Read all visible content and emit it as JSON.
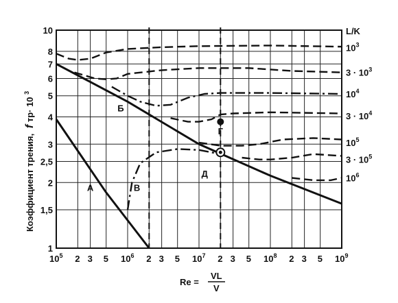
{
  "chart_data": {
    "type": "line",
    "xscale": "log",
    "yscale": "log",
    "xlim": [
      100000,
      1000000000
    ],
    "ylim": [
      1,
      10
    ],
    "x_decade_ticks": [
      {
        "base": "10",
        "exp": "5",
        "value": 100000
      },
      {
        "base": "10",
        "exp": "6",
        "value": 1000000
      },
      {
        "base": "10",
        "exp": "7",
        "value": 10000000
      },
      {
        "base": "10",
        "exp": "8",
        "value": 100000000
      },
      {
        "base": "10",
        "exp": "9",
        "value": 1000000000
      }
    ],
    "x_minor_ticks": [
      "2",
      "3",
      "5"
    ],
    "y_ticks": [
      {
        "label": "1",
        "value": 1
      },
      {
        "label": "1,5",
        "value": 1.5
      },
      {
        "label": "2",
        "value": 2
      },
      {
        "label": "2,5",
        "value": 2.5
      },
      {
        "label": "3",
        "value": 3
      },
      {
        "label": "4",
        "value": 4
      },
      {
        "label": "5",
        "value": 5
      },
      {
        "label": "6",
        "value": 6
      },
      {
        "label": "7",
        "value": 7
      },
      {
        "label": "8",
        "value": 8
      },
      {
        "label": "10",
        "value": 10
      }
    ],
    "ylabel": {
      "prefix": "Коэффициент трения,",
      "symbol": "f",
      "suffix": " тр· 10",
      "exp": "3"
    },
    "xlabel": {
      "lhs": "Re =",
      "num": "VL",
      "den": "V"
    },
    "right_axis_title": "L/K",
    "right_labels": [
      {
        "mant": "",
        "exp": "3",
        "y": 8.3
      },
      {
        "mant": "3 ·",
        "exp": "3",
        "y": 6.4
      },
      {
        "mant": "",
        "exp": "4",
        "y": 5.1
      },
      {
        "mant": "3 ·",
        "exp": "4",
        "y": 4.05
      },
      {
        "mant": "",
        "exp": "5",
        "y": 3.05
      },
      {
        "mant": "3 ·",
        "exp": "5",
        "y": 2.55
      },
      {
        "mant": "",
        "exp": "6",
        "y": 2.1
      }
    ],
    "series": [
      {
        "name": "А",
        "style": "solid",
        "x": [
          100000,
          500000,
          2000000
        ],
        "y": [
          3.9,
          1.8,
          1.0
        ]
      },
      {
        "name": "Б",
        "style": "solid",
        "x": [
          100000,
          1000000,
          10000000,
          100000000,
          1000000000
        ],
        "y": [
          7.0,
          4.7,
          3.0,
          2.15,
          1.6
        ]
      },
      {
        "name": "В",
        "style": "dashdot",
        "x": [
          1000000,
          1150000,
          1500000,
          2500000,
          5000000,
          10000000,
          20000000
        ],
        "y": [
          1.5,
          2.0,
          2.45,
          2.75,
          2.85,
          2.82,
          2.7
        ]
      },
      {
        "name": "10³",
        "style": "dashed",
        "x": [
          100000,
          150000,
          200000,
          300000,
          500000,
          1000000,
          3000000,
          10000000,
          100000000,
          1000000000
        ],
        "y": [
          7.8,
          7.4,
          7.3,
          7.4,
          7.9,
          8.2,
          8.35,
          8.45,
          8.5,
          8.4
        ]
      },
      {
        "name": "3·10³",
        "style": "dashed",
        "x": [
          180000,
          250000,
          350000,
          500000,
          700000,
          1000000,
          3000000,
          10000000,
          50000000,
          200000000,
          1000000000
        ],
        "y": [
          6.4,
          6.2,
          6.0,
          5.95,
          6.0,
          6.3,
          6.55,
          6.7,
          6.7,
          6.5,
          6.4
        ]
      },
      {
        "name": "10⁴",
        "style": "dashdot",
        "x": [
          600000,
          1000000,
          1500000,
          2500000,
          4000000,
          7000000,
          12000000,
          20000000,
          40000000,
          100000000,
          1000000000
        ],
        "y": [
          5.5,
          5.0,
          4.7,
          4.5,
          4.55,
          4.9,
          5.1,
          5.15,
          5.15,
          5.15,
          5.1
        ]
      },
      {
        "name": "3·10⁴",
        "style": "dashed",
        "x": [
          4000000,
          7000000,
          10000000,
          15000000,
          20000000,
          30000000,
          100000000,
          1000000000
        ],
        "y": [
          3.95,
          3.8,
          3.8,
          3.9,
          4.1,
          4.15,
          4.2,
          4.15
        ]
      },
      {
        "name": "10⁵",
        "style": "dashed",
        "x": [
          10000000,
          20000000,
          40000000,
          70000000,
          150000000,
          400000000,
          1000000000
        ],
        "y": [
          3.05,
          2.95,
          2.95,
          3.0,
          3.15,
          3.2,
          3.15
        ]
      },
      {
        "name": "3·10⁵",
        "style": "dashed",
        "x": [
          40000000,
          70000000,
          100000000,
          200000000,
          400000000,
          1000000000
        ],
        "y": [
          2.6,
          2.55,
          2.55,
          2.6,
          2.7,
          2.65
        ]
      },
      {
        "name": "10⁶",
        "style": "dashed",
        "x": [
          200000000,
          400000000,
          700000000,
          1000000000
        ],
        "y": [
          2.1,
          2.05,
          2.05,
          2.1
        ]
      }
    ],
    "points": [
      {
        "name": "Г",
        "x": 20000000,
        "y": 3.8,
        "marker": "filled"
      },
      {
        "name": "Д",
        "x": 20000000,
        "y": 2.75,
        "marker": "ring"
      }
    ],
    "vertical_dashed": [
      {
        "x": 20000000
      },
      {
        "x": 2000000
      }
    ],
    "annotations": [
      {
        "text": "А",
        "x": 300000,
        "y": 1.9
      },
      {
        "text": "Б",
        "x": 800000,
        "y": 4.4
      },
      {
        "text": "В",
        "x": 1350000,
        "y": 1.9
      },
      {
        "text": "Г",
        "x": 20000000,
        "y": 3.45
      },
      {
        "text": "Д",
        "x": 12000000,
        "y": 2.2
      }
    ],
    "grid": true,
    "legend": "none"
  }
}
